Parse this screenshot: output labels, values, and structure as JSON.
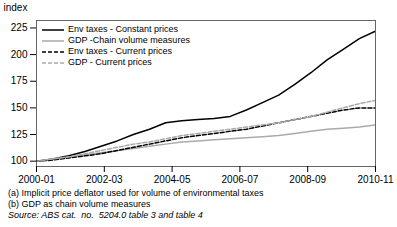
{
  "chart_data": {
    "type": "line",
    "ylabel": "index",
    "x": [
      0,
      0.47619047619047616,
      0.9523809523809523,
      1.4285714285714286,
      1.9047619047619047,
      2.380952380952381,
      2.857142857142857,
      3.333333333333333,
      3.8095238095238093,
      4.285714285714286,
      4.761904761904762,
      5.238095238095238,
      5.714285714285714,
      6.190476190476191,
      6.666666666666666,
      7.142857142857142,
      7.619047619047619,
      8.095238095238095,
      8.571428571428571,
      9.047619047619047,
      9.523809523809524,
      10
    ],
    "xlim": [
      0,
      10
    ],
    "xticks": [
      {
        "value": 0,
        "label": "2000-01"
      },
      {
        "value": 2,
        "label": "2002-03"
      },
      {
        "value": 4,
        "label": "2004-05"
      },
      {
        "value": 6,
        "label": "2006-07"
      },
      {
        "value": 8,
        "label": "2008-09"
      },
      {
        "value": 10,
        "label": "2010-11"
      }
    ],
    "ylim": [
      95,
      232
    ],
    "yticks": [
      100,
      125,
      150,
      175,
      200,
      225
    ],
    "grid": false,
    "legend": "upper left",
    "series": [
      {
        "name": "Env taxes - Constant prices",
        "color": "#000000",
        "line_style": "solid",
        "values": [
          100,
          102,
          105,
          109,
          114,
          119,
          125,
          130,
          136,
          138,
          139,
          140,
          142,
          148,
          155,
          162,
          172,
          183,
          195,
          205,
          215,
          222
        ]
      },
      {
        "name": "GDP -Chain volume measures",
        "color": "#aaaaaa",
        "line_style": "solid",
        "values": [
          100,
          102,
          104,
          106,
          108,
          110,
          112,
          114,
          116,
          118,
          119,
          120,
          121,
          122,
          123,
          124,
          126,
          128,
          130,
          131,
          132,
          134
        ]
      },
      {
        "name": "Env taxes - Current prices",
        "color": "#000000",
        "line_style": "dashed",
        "values": [
          100,
          101,
          103,
          105,
          107,
          110,
          113,
          116,
          119,
          122,
          124,
          126,
          128,
          130,
          133,
          136,
          139,
          142,
          145,
          148,
          150,
          150
        ]
      },
      {
        "name": "GDP - Current prices",
        "color": "#aaaaaa",
        "line_style": "dashed",
        "values": [
          100,
          102,
          104,
          107,
          110,
          113,
          116,
          118,
          121,
          124,
          126,
          128,
          130,
          132,
          134,
          136,
          139,
          142,
          146,
          150,
          154,
          157
        ]
      }
    ],
    "footnotes": [
      "(a) Implicit price deflator used for volume of environmental taxes",
      "(b) GDP as chain volume measures"
    ],
    "source": "Source: ABS cat.  no.  5204.0 table 3 and table 4"
  }
}
